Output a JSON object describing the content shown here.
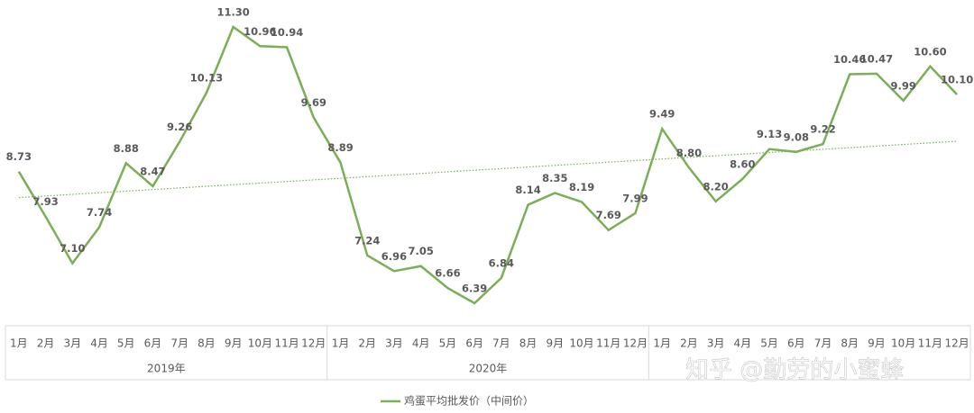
{
  "chart_data": {
    "type": "line",
    "categories": [
      "1月",
      "2月",
      "3月",
      "4月",
      "5月",
      "6月",
      "7月",
      "8月",
      "9月",
      "10月",
      "11月",
      "12月",
      "1月",
      "2月",
      "3月",
      "4月",
      "5月",
      "6月",
      "7月",
      "8月",
      "9月",
      "10月",
      "11月",
      "12月",
      "1月",
      "2月",
      "3月",
      "4月",
      "5月",
      "6月",
      "7月",
      "8月",
      "9月",
      "10月",
      "11月",
      "12月"
    ],
    "groups": [
      "2019年",
      "2020年",
      null
    ],
    "series": [
      {
        "name": "鸡蛋平均批发价（中间价）",
        "color": "#7aaf55",
        "values": [
          8.73,
          7.93,
          7.1,
          7.74,
          8.88,
          8.47,
          9.26,
          10.13,
          11.3,
          10.96,
          10.94,
          9.69,
          8.89,
          7.24,
          6.96,
          7.05,
          6.66,
          6.39,
          6.84,
          8.14,
          8.35,
          8.19,
          7.69,
          7.99,
          9.49,
          8.8,
          8.2,
          8.6,
          9.13,
          9.08,
          9.22,
          10.46,
          10.47,
          9.99,
          10.6,
          10.1
        ],
        "value_labels": [
          "8.73",
          "7.93",
          "7.10",
          "7.74",
          "8.88",
          "8.47",
          "9.26",
          "10.13",
          "11.30",
          "10.96",
          "10.94",
          "9.69",
          "8.89",
          "7.24",
          "6.96",
          "7.05",
          "6.66",
          "6.39",
          "6.84",
          "8.14",
          "8.35",
          "8.19",
          "7.69",
          "7.99",
          "9.49",
          "8.80",
          "8.20",
          "8.60",
          "9.13",
          "9.08",
          "9.22",
          "10.46",
          "10.47",
          "9.99",
          "10.60",
          "10.10"
        ]
      }
    ],
    "trendline": true,
    "legend": "bottom"
  },
  "watermark": "知乎 @勤劳的小蜜蜂"
}
